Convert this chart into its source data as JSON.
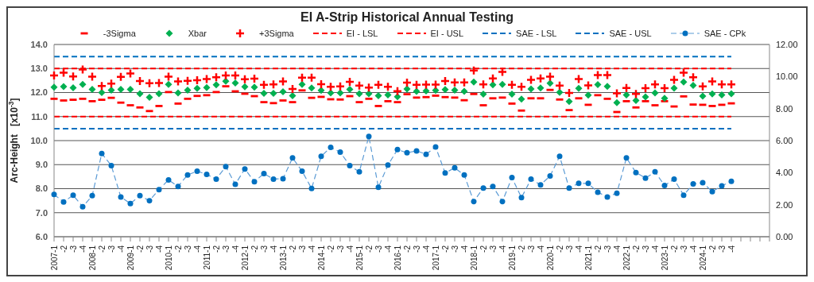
{
  "chart_data": {
    "type": "line",
    "title": "EI A-Strip Historical Annual Testing",
    "ylabel": "Arc-Height   [x10$^{-3}$]",
    "categories": [
      "2007-1",
      "-2",
      "-3",
      "-4",
      "2008-1",
      "-2",
      "-3",
      "-4",
      "2009-1",
      "-2",
      "-3",
      "-4",
      "2010-1",
      "-2",
      "-3",
      "-4",
      "2011-1",
      "-2",
      "-3",
      "-4",
      "2012-1",
      "-2",
      "-3",
      "-4",
      "2013-1",
      "-2",
      "-3",
      "-4",
      "2014-1",
      "-2",
      "-3",
      "-4",
      "2015-1",
      "-2",
      "-3",
      "-4",
      "2016-1",
      "-2",
      "-3",
      "-4",
      "2017-1",
      "-2",
      "-3",
      "-4",
      "2018-1",
      "-2",
      "-3",
      "-4",
      "2019-1",
      "-2",
      "-3",
      "-4",
      "2020-1",
      "-2",
      "-3",
      "-4",
      "2021-1",
      "-2",
      "-3",
      "-4",
      "2022-1",
      "-2",
      "-3",
      "-4",
      "2023-1",
      "-2",
      "-3",
      "-4",
      "2024-1",
      "-2",
      "-3",
      "-4",
      null,
      null,
      null,
      null
    ],
    "series": [
      {
        "name": "-3Sigma",
        "type": "scatter",
        "color": "#ff0000",
        "values": [
          11.74,
          11.67,
          11.7,
          11.74,
          11.64,
          11.7,
          11.78,
          11.58,
          11.47,
          11.38,
          11.23,
          11.44,
          12.02,
          11.54,
          11.74,
          11.86,
          11.89,
          12.02,
          12.26,
          12.05,
          11.95,
          11.85,
          11.6,
          11.56,
          11.67,
          11.6,
          12.09,
          11.78,
          11.82,
          11.72,
          11.71,
          11.85,
          11.6,
          11.74,
          11.44,
          11.64,
          11.6,
          11.93,
          11.79,
          11.81,
          11.87,
          11.81,
          11.79,
          11.68,
          11.94,
          11.47,
          11.76,
          11.79,
          11.54,
          11.25,
          11.76,
          11.76,
          12.11,
          11.71,
          11.27,
          11.76,
          11.49,
          11.89,
          11.74,
          11.19,
          11.64,
          11.38,
          11.64,
          11.47,
          11.64,
          11.42,
          11.84,
          11.5,
          11.49,
          11.44,
          11.49,
          11.55,
          null,
          null,
          null,
          null
        ]
      },
      {
        "name": "Xbar",
        "type": "scatter",
        "marker": "diamond",
        "color": "#00b050",
        "values": [
          12.22,
          12.25,
          12.2,
          12.34,
          12.13,
          12.0,
          12.1,
          12.13,
          12.13,
          11.95,
          11.8,
          11.95,
          12.34,
          11.98,
          12.1,
          12.17,
          12.21,
          12.32,
          12.47,
          12.4,
          12.24,
          12.22,
          11.97,
          11.97,
          12.03,
          11.87,
          12.34,
          12.19,
          12.09,
          11.98,
          11.98,
          12.13,
          11.95,
          11.95,
          11.87,
          11.9,
          11.83,
          12.15,
          12.05,
          12.07,
          12.09,
          12.12,
          12.1,
          12.05,
          12.44,
          11.93,
          12.32,
          12.34,
          11.93,
          11.73,
          12.15,
          12.19,
          12.39,
          12.01,
          11.63,
          12.17,
          11.89,
          12.33,
          12.26,
          11.58,
          11.9,
          11.67,
          11.82,
          11.98,
          11.76,
          12.18,
          12.44,
          12.3,
          11.85,
          11.94,
          11.9,
          11.95,
          null,
          null,
          null,
          null
        ]
      },
      {
        "name": "+3Sigma",
        "type": "scatter",
        "marker": "cross",
        "color": "#ff0000",
        "values": [
          12.71,
          12.83,
          12.67,
          12.96,
          12.66,
          12.27,
          12.37,
          12.65,
          12.79,
          12.48,
          12.39,
          12.4,
          12.66,
          12.46,
          12.49,
          12.51,
          12.56,
          12.64,
          12.71,
          12.71,
          12.55,
          12.58,
          12.32,
          12.34,
          12.46,
          12.15,
          12.62,
          12.62,
          12.35,
          12.24,
          12.26,
          12.45,
          12.29,
          12.21,
          12.32,
          12.24,
          12.06,
          12.41,
          12.32,
          12.33,
          12.33,
          12.48,
          12.42,
          12.42,
          12.92,
          12.34,
          12.59,
          12.86,
          12.32,
          12.24,
          12.53,
          12.59,
          12.66,
          12.29,
          11.98,
          12.56,
          12.3,
          12.73,
          12.73,
          11.97,
          12.19,
          11.94,
          12.18,
          12.34,
          12.18,
          12.53,
          12.83,
          12.64,
          12.26,
          12.46,
          12.34,
          12.34,
          null,
          null,
          null,
          null
        ]
      },
      {
        "name": "EI - LSL",
        "line_style": "dashed",
        "color": "#ff0000",
        "values": [
          11,
          11,
          11,
          11,
          11,
          11,
          11,
          11,
          11,
          11,
          11,
          11,
          11,
          11,
          11,
          11,
          11,
          11,
          11,
          11,
          11,
          11,
          11,
          11,
          11,
          11,
          11,
          11,
          11,
          11,
          11,
          11,
          11,
          11,
          11,
          11,
          11,
          11,
          11,
          11,
          11,
          11,
          11,
          11,
          11,
          11,
          11,
          11,
          11,
          11,
          11,
          11,
          11,
          11,
          11,
          11,
          11,
          11,
          11,
          11,
          11,
          11,
          11,
          11,
          11,
          11,
          11,
          11,
          11,
          11,
          11,
          11,
          null,
          null,
          null,
          null
        ]
      },
      {
        "name": "EI - USL",
        "line_style": "dashed",
        "color": "#ff0000",
        "values": [
          13,
          13,
          13,
          13,
          13,
          13,
          13,
          13,
          13,
          13,
          13,
          13,
          13,
          13,
          13,
          13,
          13,
          13,
          13,
          13,
          13,
          13,
          13,
          13,
          13,
          13,
          13,
          13,
          13,
          13,
          13,
          13,
          13,
          13,
          13,
          13,
          13,
          13,
          13,
          13,
          13,
          13,
          13,
          13,
          13,
          13,
          13,
          13,
          13,
          13,
          13,
          13,
          13,
          13,
          13,
          13,
          13,
          13,
          13,
          13,
          13,
          13,
          13,
          13,
          13,
          13,
          13,
          13,
          13,
          13,
          13,
          13,
          null,
          null,
          null,
          null
        ]
      },
      {
        "name": "SAE - LSL",
        "line_style": "dashed",
        "color": "#0070c0",
        "values": [
          10.5,
          10.5,
          10.5,
          10.5,
          10.5,
          10.5,
          10.5,
          10.5,
          10.5,
          10.5,
          10.5,
          10.5,
          10.5,
          10.5,
          10.5,
          10.5,
          10.5,
          10.5,
          10.5,
          10.5,
          10.5,
          10.5,
          10.5,
          10.5,
          10.5,
          10.5,
          10.5,
          10.5,
          10.5,
          10.5,
          10.5,
          10.5,
          10.5,
          10.5,
          10.5,
          10.5,
          10.5,
          10.5,
          10.5,
          10.5,
          10.5,
          10.5,
          10.5,
          10.5,
          10.5,
          10.5,
          10.5,
          10.5,
          10.5,
          10.5,
          10.5,
          10.5,
          10.5,
          10.5,
          10.5,
          10.5,
          10.5,
          10.5,
          10.5,
          10.5,
          10.5,
          10.5,
          10.5,
          10.5,
          10.5,
          10.5,
          10.5,
          10.5,
          10.5,
          10.5,
          10.5,
          10.5,
          null,
          null,
          null,
          null
        ]
      },
      {
        "name": "SAE - USL",
        "line_style": "dashed",
        "color": "#0070c0",
        "values": [
          13.5,
          13.5,
          13.5,
          13.5,
          13.5,
          13.5,
          13.5,
          13.5,
          13.5,
          13.5,
          13.5,
          13.5,
          13.5,
          13.5,
          13.5,
          13.5,
          13.5,
          13.5,
          13.5,
          13.5,
          13.5,
          13.5,
          13.5,
          13.5,
          13.5,
          13.5,
          13.5,
          13.5,
          13.5,
          13.5,
          13.5,
          13.5,
          13.5,
          13.5,
          13.5,
          13.5,
          13.5,
          13.5,
          13.5,
          13.5,
          13.5,
          13.5,
          13.5,
          13.5,
          13.5,
          13.5,
          13.5,
          13.5,
          13.5,
          13.5,
          13.5,
          13.5,
          13.5,
          13.5,
          13.5,
          13.5,
          13.5,
          13.5,
          13.5,
          13.5,
          13.5,
          13.5,
          13.5,
          13.5,
          13.5,
          13.5,
          13.5,
          13.5,
          13.5,
          13.5,
          13.5,
          13.5,
          null,
          null,
          null,
          null
        ]
      },
      {
        "name": "SAE - CPk",
        "line_style": "dashed",
        "marker": "circle",
        "axis": "y2",
        "color": "#0070c0",
        "values": [
          2.64,
          2.17,
          2.59,
          1.87,
          2.56,
          5.2,
          4.44,
          2.48,
          2.07,
          2.56,
          2.25,
          2.94,
          3.55,
          3.14,
          3.86,
          4.09,
          3.89,
          3.6,
          4.38,
          3.27,
          4.23,
          3.44,
          3.94,
          3.6,
          3.62,
          4.92,
          4.09,
          3.01,
          5.02,
          5.58,
          5.28,
          4.44,
          4.05,
          6.26,
          3.09,
          4.47,
          5.44,
          5.24,
          5.36,
          5.15,
          5.6,
          3.98,
          4.3,
          3.85,
          2.2,
          3.04,
          3.14,
          2.2,
          3.69,
          2.44,
          3.59,
          3.24,
          3.79,
          5.02,
          3.04,
          3.33,
          3.33,
          2.78,
          2.48,
          2.72,
          4.92,
          4.01,
          3.66,
          4.05,
          3.2,
          3.59,
          2.59,
          3.3,
          3.37,
          2.82,
          3.17,
          3.46,
          null,
          null,
          null,
          null
        ]
      }
    ],
    "ylim": [
      6,
      14
    ],
    "yticks": [
      {
        "value": 6,
        "label": "6.0"
      },
      {
        "value": 7,
        "label": "7.0"
      },
      {
        "value": 8,
        "label": "8.0"
      },
      {
        "value": 9,
        "label": "9.0"
      },
      {
        "value": 10,
        "label": "10.0"
      },
      {
        "value": 11,
        "label": "11.0"
      },
      {
        "value": 12,
        "label": "12.0"
      },
      {
        "value": 13,
        "label": "13.0"
      },
      {
        "value": 14,
        "label": "14.0"
      }
    ],
    "y2lim": [
      0,
      12
    ],
    "y2ticks": [
      {
        "value": 0,
        "label": "0.00"
      },
      {
        "value": 2,
        "label": "2.00"
      },
      {
        "value": 4,
        "label": "4.00"
      },
      {
        "value": 6,
        "label": "6.00"
      },
      {
        "value": 8,
        "label": "8.00"
      },
      {
        "value": 10,
        "label": "10.00"
      },
      {
        "value": 12,
        "label": "12.00"
      }
    ],
    "grid": "y",
    "legend": "top"
  }
}
